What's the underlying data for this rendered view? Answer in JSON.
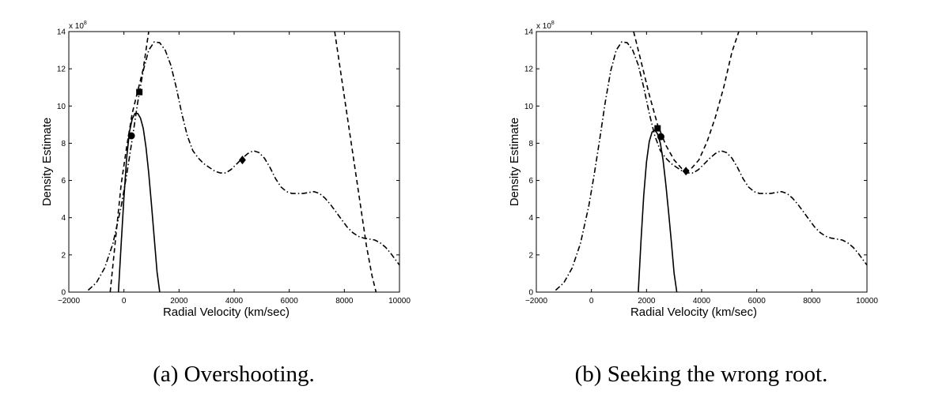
{
  "chart_data": [
    {
      "type": "line",
      "caption": "(a) Overshooting.",
      "xlabel": "Radial Velocity (km/sec)",
      "ylabel": "Density Estimate",
      "y_exponent": "x 10",
      "y_exponent_power": "8",
      "xlim": [
        -2000,
        10000
      ],
      "ylim": [
        0,
        14
      ],
      "xticks": [
        -2000,
        0,
        2000,
        4000,
        6000,
        8000,
        10000
      ],
      "yticks": [
        0,
        2,
        4,
        6,
        8,
        10,
        12,
        14
      ],
      "grid": false,
      "series": [
        {
          "style": "dashdot",
          "x": [
            -1300,
            -1000,
            -700,
            -400,
            -100,
            100,
            300,
            500,
            700,
            900,
            1100,
            1300,
            1500,
            1700,
            1900,
            2100,
            2300,
            2500,
            2700,
            2900,
            3100,
            3300,
            3500,
            3700,
            3900,
            4100,
            4300,
            4500,
            4700,
            4900,
            5100,
            5300,
            5500,
            5700,
            5900,
            6100,
            6300,
            6500,
            6700,
            6900,
            7100,
            7300,
            7500,
            7700,
            7900,
            8100,
            8300,
            8500,
            8700,
            8900,
            9100,
            9300,
            9500,
            9700,
            9900,
            10000
          ],
          "y": [
            0.1,
            0.5,
            1.3,
            2.6,
            4.6,
            6.3,
            8.2,
            10.2,
            11.9,
            13.0,
            13.45,
            13.4,
            13.0,
            12.2,
            11.0,
            9.6,
            8.4,
            7.6,
            7.2,
            6.9,
            6.7,
            6.5,
            6.4,
            6.4,
            6.6,
            6.9,
            7.2,
            7.45,
            7.6,
            7.5,
            7.2,
            6.7,
            6.1,
            5.65,
            5.4,
            5.3,
            5.3,
            5.3,
            5.35,
            5.4,
            5.3,
            5.05,
            4.7,
            4.3,
            3.9,
            3.5,
            3.2,
            3.0,
            2.9,
            2.85,
            2.8,
            2.65,
            2.4,
            2.05,
            1.65,
            1.45
          ]
        },
        {
          "style": "dashed",
          "x": [
            -500,
            -300,
            -100,
            100,
            300,
            500,
            700,
            900
          ],
          "y": [
            0,
            2.9,
            5.8,
            7.8,
            9.6,
            10.8,
            12.0,
            14
          ]
        },
        {
          "style": "dashed",
          "x": [
            7650,
            7900,
            8200,
            8500,
            8800,
            9000,
            9150
          ],
          "y": [
            14,
            11.5,
            8.5,
            5.5,
            2.5,
            0.9,
            0
          ]
        },
        {
          "style": "solid",
          "x": [
            -200,
            -100,
            0,
            100,
            200,
            300,
            400,
            500,
            600,
            700,
            800,
            900,
            1000,
            1100,
            1200,
            1300
          ],
          "y": [
            0,
            2.6,
            5.1,
            7.2,
            8.6,
            9.3,
            9.6,
            9.6,
            9.35,
            8.8,
            7.8,
            6.4,
            4.7,
            2.9,
            1.1,
            0
          ]
        }
      ],
      "markers": [
        {
          "shape": "circle",
          "x": 270,
          "y": 8.4
        },
        {
          "shape": "square",
          "x": 560,
          "y": 10.75
        },
        {
          "shape": "diamond",
          "x": 4300,
          "y": 7.1
        }
      ]
    },
    {
      "type": "line",
      "caption": "(b) Seeking the wrong root.",
      "xlabel": "Radial Velocity (km/sec)",
      "ylabel": "Density Estimate",
      "y_exponent": "x 10",
      "y_exponent_power": "8",
      "xlim": [
        -2000,
        10000
      ],
      "ylim": [
        0,
        14
      ],
      "xticks": [
        -2000,
        0,
        2000,
        4000,
        6000,
        8000,
        10000
      ],
      "yticks": [
        0,
        2,
        4,
        6,
        8,
        10,
        12,
        14
      ],
      "grid": false,
      "series": [
        {
          "style": "dashdot",
          "x": [
            -1300,
            -1000,
            -700,
            -400,
            -100,
            100,
            300,
            500,
            700,
            900,
            1100,
            1300,
            1500,
            1700,
            1900,
            2100,
            2300,
            2500,
            2700,
            2900,
            3100,
            3300,
            3500,
            3700,
            3900,
            4100,
            4300,
            4500,
            4700,
            4900,
            5100,
            5300,
            5500,
            5700,
            5900,
            6100,
            6300,
            6500,
            6700,
            6900,
            7100,
            7300,
            7500,
            7700,
            7900,
            8100,
            8300,
            8500,
            8700,
            8900,
            9100,
            9300,
            9500,
            9700,
            9900,
            10000
          ],
          "y": [
            0.1,
            0.5,
            1.3,
            2.6,
            4.6,
            6.3,
            8.2,
            10.2,
            11.9,
            13.0,
            13.45,
            13.4,
            13.0,
            12.2,
            11.0,
            9.6,
            8.4,
            7.6,
            7.2,
            6.9,
            6.7,
            6.5,
            6.4,
            6.4,
            6.6,
            6.9,
            7.2,
            7.45,
            7.6,
            7.5,
            7.2,
            6.7,
            6.1,
            5.65,
            5.4,
            5.3,
            5.3,
            5.3,
            5.35,
            5.4,
            5.3,
            5.05,
            4.7,
            4.3,
            3.9,
            3.5,
            3.2,
            3.0,
            2.9,
            2.85,
            2.8,
            2.65,
            2.4,
            2.05,
            1.65,
            1.45
          ]
        },
        {
          "style": "dashed",
          "x": [
            1530,
            1800,
            2100,
            2400,
            2700,
            3000,
            3300,
            3450,
            3600,
            3900,
            4200,
            4500,
            4800,
            5100,
            5350
          ],
          "y": [
            14,
            12.4,
            10.6,
            9.0,
            7.9,
            7.1,
            6.6,
            6.5,
            6.6,
            7.1,
            8.1,
            9.4,
            11.0,
            12.9,
            14
          ]
        },
        {
          "style": "solid",
          "x": [
            1700,
            1800,
            1900,
            2000,
            2100,
            2200,
            2300,
            2400,
            2500,
            2600,
            2700,
            2800,
            2900,
            3000,
            3100
          ],
          "y": [
            0,
            2.8,
            5.2,
            7.0,
            8.1,
            8.6,
            8.7,
            8.5,
            8.0,
            7.1,
            5.8,
            4.3,
            2.7,
            1.0,
            0
          ]
        }
      ],
      "markers": [
        {
          "shape": "square",
          "x": 2400,
          "y": 8.8
        },
        {
          "shape": "circle",
          "x": 2520,
          "y": 8.35
        },
        {
          "shape": "diamond",
          "x": 3430,
          "y": 6.5
        }
      ]
    }
  ]
}
